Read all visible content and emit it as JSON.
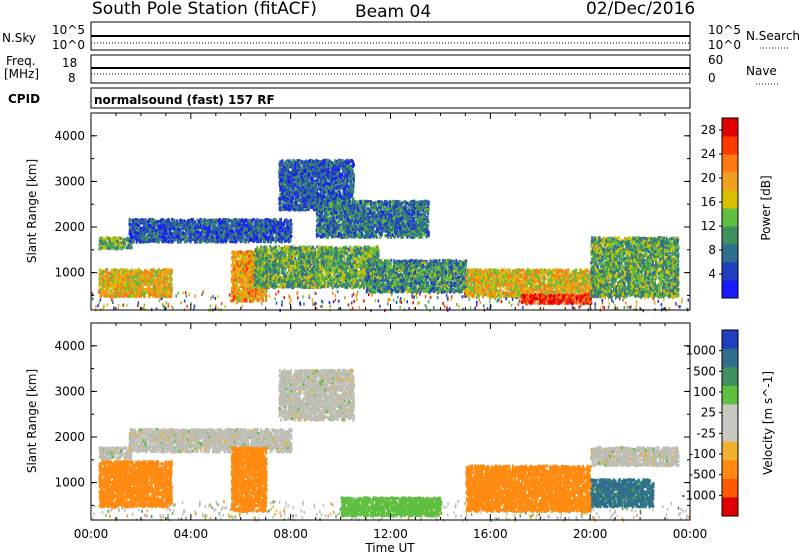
{
  "header": {
    "station": "South Pole Station (fitACF)",
    "beam": "Beam 04",
    "date": "02/Dec/2016"
  },
  "strips": {
    "nsky_label": "N.Sky",
    "nsky_ticks": [
      "10^5",
      "10^0"
    ],
    "nsearch_label": "N.Search",
    "nsearch_ticks": [
      "10^5",
      "10^0"
    ],
    "freq_label_line1": "Freq.",
    "freq_label_line2": "[MHz]",
    "freq_ticks": [
      "18",
      "8"
    ],
    "nave_label": "Nave",
    "nave_ticks": [
      "60",
      "0"
    ],
    "cpid_label": "CPID",
    "cpid_text": "normalsound (fast) 157 RF"
  },
  "colors": {
    "power_scale": [
      "#1a1aff",
      "#1f3fbf",
      "#2e6f8e",
      "#3f8f5f",
      "#5fbf3f",
      "#d8c000",
      "#f0a020",
      "#ff7a10",
      "#ff3a00",
      "#e00000"
    ],
    "velocity_scale": [
      "#e00000",
      "#ff5a00",
      "#ff8a10",
      "#f0b030",
      "#c8c8c0",
      "#c8c8c0",
      "#5fbf3f",
      "#3f8f5f",
      "#2e6f8e",
      "#1f3fbf"
    ],
    "ground_scatter": "#bdbdb5"
  },
  "chart_data": [
    {
      "type": "heatmap",
      "name": "power",
      "ylabel": "Slant Range [km]",
      "xlabel": "",
      "ylim": [
        180,
        4500
      ],
      "xlim_hours": [
        0,
        24
      ],
      "x_ticks": [
        "00:00",
        "04:00",
        "08:00",
        "12:00",
        "16:00",
        "20:00",
        "00:00"
      ],
      "y_ticks": [
        "1000",
        "2000",
        "3000",
        "4000"
      ],
      "colorbar": {
        "label": "Power [dB]",
        "ticks": [
          "4",
          "8",
          "12",
          "16",
          "20",
          "24",
          "28"
        ],
        "range": [
          0,
          30
        ]
      },
      "regions": [
        {
          "t0": 0.3,
          "t1": 3.2,
          "r0": 500,
          "r1": 1100,
          "value": 18
        },
        {
          "t0": 0.3,
          "t1": 1.6,
          "r0": 1550,
          "r1": 1800,
          "value": 12
        },
        {
          "t0": 1.5,
          "t1": 8.0,
          "r0": 1700,
          "r1": 2200,
          "value": 6
        },
        {
          "t0": 5.6,
          "t1": 7.0,
          "r0": 400,
          "r1": 1500,
          "value": 20
        },
        {
          "t0": 6.5,
          "t1": 11.5,
          "r0": 700,
          "r1": 1600,
          "value": 12
        },
        {
          "t0": 7.5,
          "t1": 10.5,
          "r0": 2400,
          "r1": 3500,
          "value": 6
        },
        {
          "t0": 9.0,
          "t1": 13.5,
          "r0": 1800,
          "r1": 2600,
          "value": 8
        },
        {
          "t0": 11.0,
          "t1": 15.0,
          "r0": 600,
          "r1": 1300,
          "value": 10
        },
        {
          "t0": 15.0,
          "t1": 20.5,
          "r0": 500,
          "r1": 1100,
          "value": 18
        },
        {
          "t0": 17.2,
          "t1": 20.0,
          "r0": 350,
          "r1": 550,
          "value": 27
        },
        {
          "t0": 20.0,
          "t1": 23.5,
          "r0": 500,
          "r1": 1800,
          "value": 12
        }
      ]
    },
    {
      "type": "heatmap",
      "name": "velocity",
      "ylabel": "Slant Range [km]",
      "xlabel": "Time UT",
      "ylim": [
        180,
        4500
      ],
      "xlim_hours": [
        0,
        24
      ],
      "x_ticks": [
        "00:00",
        "04:00",
        "08:00",
        "12:00",
        "16:00",
        "20:00",
        "00:00"
      ],
      "y_ticks": [
        "1000",
        "2000",
        "3000",
        "4000"
      ],
      "colorbar": {
        "label": "Velocity [m s^-1]",
        "ticks": [
          "1000",
          "500",
          "100",
          "25",
          "-25",
          "-100",
          "-500",
          "-1000"
        ]
      },
      "regions": [
        {
          "t0": 0.3,
          "t1": 3.2,
          "r0": 500,
          "r1": 1500,
          "value": -300
        },
        {
          "t0": 0.3,
          "t1": 1.6,
          "r0": 1550,
          "r1": 1800,
          "value": 0
        },
        {
          "t0": 1.5,
          "t1": 8.0,
          "r0": 1700,
          "r1": 2200,
          "value": 0
        },
        {
          "t0": 5.6,
          "t1": 7.0,
          "r0": 400,
          "r1": 1800,
          "value": -300
        },
        {
          "t0": 7.5,
          "t1": 10.5,
          "r0": 2400,
          "r1": 3500,
          "value": 0
        },
        {
          "t0": 10.0,
          "t1": 14.0,
          "r0": 300,
          "r1": 700,
          "value": 60
        },
        {
          "t0": 15.0,
          "t1": 20.0,
          "r0": 400,
          "r1": 1400,
          "value": -300
        },
        {
          "t0": 20.0,
          "t1": 22.5,
          "r0": 500,
          "r1": 1100,
          "value": 700
        },
        {
          "t0": 20.0,
          "t1": 23.5,
          "r0": 1400,
          "r1": 1800,
          "value": 0
        }
      ]
    }
  ]
}
